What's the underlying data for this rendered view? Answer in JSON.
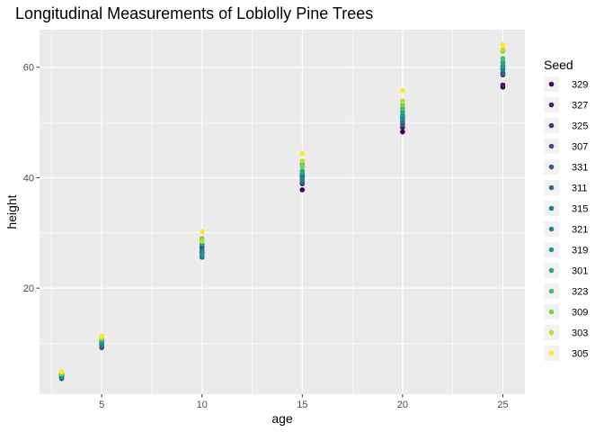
{
  "chart_data": {
    "type": "scatter",
    "title": "Longitudinal Measurements of Loblolly Pine Trees",
    "xlabel": "age",
    "ylabel": "height",
    "xlim": [
      1.9,
      26.1
    ],
    "ylim": [
      0.8,
      66.8
    ],
    "x_ticks": [
      5,
      10,
      15,
      20,
      25
    ],
    "y_ticks": [
      20,
      40,
      60
    ],
    "grid": true,
    "legend": {
      "title": "Seed",
      "placement": "right"
    },
    "x": [
      3,
      5,
      10,
      15,
      20,
      25
    ],
    "series": [
      {
        "name": "329",
        "color": "#440154",
        "values": [
          3.9,
          9.7,
          26.3,
          37.8,
          48.3,
          56.4
        ]
      },
      {
        "name": "327",
        "color": "#481A6C",
        "values": [
          4.1,
          10.0,
          26.5,
          38.9,
          49.1,
          56.8
        ]
      },
      {
        "name": "325",
        "color": "#472F7D",
        "values": [
          4.3,
          10.3,
          27.9,
          40.0,
          50.0,
          58.6
        ]
      },
      {
        "name": "307",
        "color": "#414487",
        "values": [
          4.0,
          9.9,
          27.4,
          40.5,
          51.0,
          59.0
        ]
      },
      {
        "name": "331",
        "color": "#39568C",
        "values": [
          3.6,
          9.2,
          25.6,
          39.1,
          49.6,
          58.8
        ]
      },
      {
        "name": "311",
        "color": "#31688E",
        "values": [
          3.9,
          9.6,
          26.9,
          40.2,
          50.6,
          59.9
        ]
      },
      {
        "name": "315",
        "color": "#2A788E",
        "values": [
          4.0,
          9.8,
          25.8,
          39.5,
          50.2,
          59.6
        ]
      },
      {
        "name": "321",
        "color": "#23888E",
        "values": [
          3.9,
          10.0,
          26.5,
          39.8,
          50.8,
          60.3
        ]
      },
      {
        "name": "319",
        "color": "#1F988B",
        "values": [
          4.2,
          10.5,
          26.0,
          40.8,
          51.4,
          60.1
        ]
      },
      {
        "name": "301",
        "color": "#22A884",
        "values": [
          4.4,
          10.4,
          28.0,
          41.2,
          52.0,
          60.9
        ]
      },
      {
        "name": "323",
        "color": "#44BF70",
        "values": [
          4.6,
          10.8,
          28.8,
          42.5,
          52.6,
          61.6
        ]
      },
      {
        "name": "309",
        "color": "#7AD151",
        "values": [
          4.5,
          11.0,
          29.0,
          42.0,
          53.2,
          62.9
        ]
      },
      {
        "name": "303",
        "color": "#BDDF26",
        "values": [
          4.8,
          11.0,
          28.5,
          43.0,
          53.9,
          63.2
        ]
      },
      {
        "name": "305",
        "color": "#FDE725",
        "values": [
          4.9,
          11.3,
          30.2,
          44.4,
          55.8,
          64.1
        ]
      }
    ]
  }
}
